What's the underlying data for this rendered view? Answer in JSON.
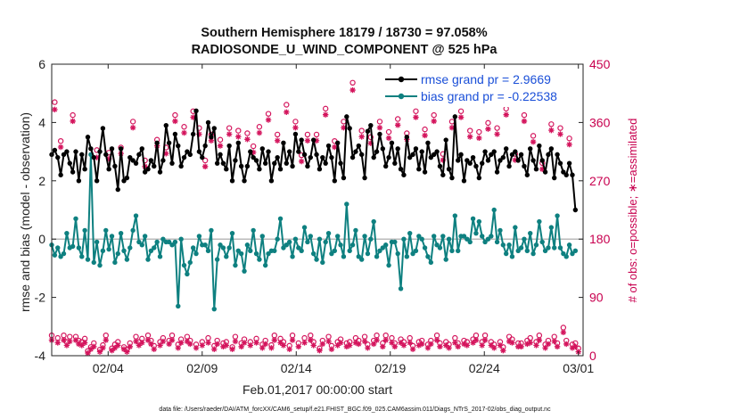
{
  "chart_data": {
    "type": "line",
    "title_line1": "Southern Hemisphere 18179 / 18730 = 97.058%",
    "title_line2": "RADIOSONDE_U_WIND_COMPONENT @ 525 hPa",
    "xlabel": "Feb.01,2017 00:00:00 start",
    "ylabel": "rmse and bias (model - observation)",
    "y2label": "# of obs: o=possible; ∗=assimilated",
    "footnote": "data file: /Users/raeder/DAI/ATM_forcXX/CAM6_setup/f.e21.FHIST_BGC.f09_025.CAM6assim.011/Diags_NTrS_2017-02/obs_diag_output.nc",
    "xlim": [
      1.0,
      29.25
    ],
    "ylim": [
      -4,
      6
    ],
    "y2lim": [
      0,
      450
    ],
    "x_ticks": [
      4,
      9,
      14,
      19,
      24,
      29
    ],
    "x_tick_labels": [
      "02/04",
      "02/09",
      "02/14",
      "02/19",
      "02/24",
      "03/01"
    ],
    "y_ticks": [
      -4,
      -2,
      0,
      2,
      4,
      6
    ],
    "y_tick_labels": [
      "-4",
      "-2",
      "0",
      "2",
      "4",
      "6"
    ],
    "y2_ticks": [
      0,
      90,
      180,
      270,
      360,
      450
    ],
    "y2_tick_labels": [
      "0",
      "90",
      "180",
      "270",
      "360",
      "450"
    ],
    "colors": {
      "rmse": "#000000",
      "bias": "#0e8080",
      "obs": "#d4155d",
      "zero_line": "#bbbbbb",
      "legend_text": "#1a4fd8"
    },
    "legend": [
      {
        "name": "rmse",
        "label": "rmse grand pr = 2.9669"
      },
      {
        "name": "bias",
        "label": "bias grand pr = -0.22538"
      }
    ],
    "series": [
      {
        "name": "rmse",
        "y_axis": "left",
        "values": [
          2.9,
          3.05,
          2.8,
          2.2,
          2.9,
          3.0,
          2.6,
          2.3,
          3.0,
          2.0,
          2.9,
          2.4,
          3.5,
          3.1,
          2.8,
          2.0,
          3.0,
          3.8,
          2.9,
          2.4,
          3.1,
          2.5,
          1.7,
          3.1,
          2.0,
          2.1,
          2.8,
          2.7,
          2.6,
          2.9,
          3.1,
          2.3,
          2.4,
          2.7,
          2.5,
          3.3,
          2.3,
          2.7,
          3.9,
          3.3,
          2.6,
          3.6,
          3.2,
          2.5,
          2.8,
          3.0,
          2.9,
          3.6,
          4.4,
          3.0,
          2.8,
          3.2,
          4.0,
          3.5,
          3.8,
          2.6,
          2.9,
          2.6,
          2.4,
          3.2,
          2.0,
          2.7,
          3.3,
          2.5,
          2.0,
          2.5,
          3.0,
          2.8,
          2.7,
          2.4,
          3.1,
          2.6,
          3.0,
          2.0,
          2.6,
          2.8,
          2.4,
          3.3,
          2.6,
          3.0,
          2.5,
          3.6,
          3.0,
          3.4,
          2.9,
          2.5,
          2.8,
          3.4,
          2.9,
          2.4,
          2.8,
          2.6,
          3.2,
          2.8,
          2.0,
          3.3,
          2.6,
          2.1,
          4.2,
          3.8,
          2.8,
          3.0,
          3.2,
          2.9,
          2.1,
          3.7,
          3.9,
          2.8,
          3.0,
          3.6,
          3.1,
          2.5,
          2.8,
          3.3,
          2.6,
          3.1,
          2.4,
          2.2,
          3.5,
          2.8,
          2.9,
          3.1,
          2.4,
          3.0,
          2.3,
          3.3,
          2.8,
          2.9,
          3.0,
          2.5,
          2.2,
          3.4,
          2.4,
          2.1,
          4.2,
          2.7,
          2.9,
          2.0,
          2.7,
          2.6,
          2.8,
          2.5,
          2.1,
          2.6,
          3.0,
          2.7,
          2.9,
          3.0,
          2.3,
          2.7,
          2.8,
          3.1,
          2.5,
          2.9,
          3.0,
          2.7,
          2.9,
          2.5,
          2.2,
          3.1,
          2.7,
          2.4,
          3.2,
          2.7,
          2.3,
          2.9,
          3.1,
          2.1,
          2.9,
          2.6,
          2.3,
          2.2,
          2.6,
          2.2,
          1.0
        ]
      },
      {
        "name": "bias",
        "y_axis": "left",
        "values": [
          -0.2,
          -0.55,
          -0.3,
          -0.6,
          -0.5,
          0.2,
          -0.3,
          -0.25,
          0.7,
          -0.3,
          -0.6,
          0.3,
          -0.7,
          2.9,
          -0.8,
          -0.1,
          -0.9,
          -0.4,
          0.3,
          -0.35,
          0.1,
          -0.8,
          -0.5,
          0.2,
          -0.4,
          -0.7,
          -0.3,
          0.3,
          0.8,
          -0.1,
          -0.2,
          0.1,
          -0.7,
          -0.4,
          -0.3,
          -0.1,
          -0.6,
          0.0,
          -0.1,
          -0.1,
          -0.2,
          -0.1,
          -2.3,
          0.0,
          -0.9,
          -1.2,
          -0.8,
          -0.3,
          -0.5,
          0.1,
          -0.2,
          -0.2,
          -0.4,
          0.3,
          -2.4,
          -0.7,
          -0.2,
          -0.3,
          -0.6,
          -0.3,
          0.2,
          -0.9,
          -0.4,
          -0.5,
          -1.1,
          -0.2,
          -0.4,
          0.3,
          -0.5,
          -0.7,
          0.1,
          -0.9,
          -0.5,
          -0.4,
          -0.4,
          0.0,
          0.7,
          -0.3,
          -0.2,
          -0.1,
          -0.6,
          0.0,
          -0.3,
          -0.4,
          0.4,
          -0.1,
          0.1,
          -0.5,
          -0.7,
          0.0,
          -0.8,
          -0.1,
          0.2,
          -0.5,
          -0.4,
          0.1,
          -0.2,
          -0.6,
          1.2,
          -0.4,
          -0.2,
          0.3,
          -0.6,
          -0.7,
          0.1,
          -0.5,
          0.0,
          0.6,
          -0.6,
          -0.4,
          -0.3,
          -0.2,
          -0.9,
          -0.1,
          -0.1,
          -0.5,
          -1.7,
          0.0,
          -0.6,
          0.2,
          -0.5,
          -0.4,
          0.1,
          0.0,
          -0.3,
          -0.6,
          -0.8,
          0.1,
          -0.2,
          -0.3,
          0.1,
          -0.7,
          0.0,
          -0.4,
          0.8,
          -0.4,
          0.1,
          0.1,
          0.0,
          -0.1,
          0.7,
          0.2,
          0.6,
          0.1,
          -0.1,
          0.0,
          0.1,
          1.0,
          -0.1,
          0.3,
          -0.2,
          -0.5,
          -0.2,
          -0.6,
          0.4,
          -0.4,
          -0.3,
          0.0,
          -0.4,
          0.2,
          -0.5,
          -0.2,
          0.6,
          -0.1,
          -0.4,
          -0.3,
          0.4,
          -0.3,
          0.8,
          -0.3,
          -0.5,
          -0.6,
          -0.2,
          -0.5,
          -0.4
        ]
      },
      {
        "name": "obs_possible",
        "y_axis": "right",
        "values": [
          30,
          390,
          26,
          330,
          30,
          20,
          28,
          370,
          28,
          22,
          20,
          25,
          6,
          12,
          18,
          316,
          8,
          15,
          30,
          312,
          10,
          16,
          20,
          320,
          12,
          8,
          18,
          360,
          28,
          20,
          25,
          300,
          30,
          22,
          14,
          332,
          20,
          26,
          320,
          22,
          30,
          370,
          16,
          24,
          352,
          28,
          22,
          376,
          16,
          350,
          20,
          300,
          26,
          340,
          14,
          22,
          332,
          18,
          20,
          350,
          12,
          28,
          346,
          18,
          24,
          342,
          20,
          322,
          25,
          352,
          16,
          22,
          372,
          15,
          30,
          340,
          25,
          20,
          386,
          14,
          30,
          360,
          18,
          308,
          26,
          340,
          30,
          20,
          340,
          10,
          22,
          380,
          28,
          14,
          330,
          20,
          24,
          360,
          18,
          20,
          420,
          26,
          22,
          346,
          28,
          16,
          336,
          22,
          30,
          360,
          18,
          30,
          344,
          26,
          18,
          364,
          24,
          20,
          342,
          26,
          14,
          376,
          20,
          22,
          348,
          16,
          22,
          370,
          30,
          18,
          310,
          20,
          16,
          360,
          26,
          18,
          376,
          22,
          20,
          346,
          24,
          30,
          344,
          20,
          30,
          358,
          20,
          16,
          350,
          20,
          12,
          380,
          28,
          24,
          310,
          18,
          18,
          370,
          22,
          26,
          338,
          20,
          30,
          296,
          16,
          22,
          356,
          28,
          18,
          350,
          42,
          22,
          334,
          16,
          18,
          10
        ]
      },
      {
        "name": "obs_assimilated",
        "y_axis": "right",
        "values": [
          24,
          380,
          20,
          322,
          24,
          16,
          22,
          362,
          24,
          18,
          16,
          20,
          4,
          10,
          14,
          306,
          6,
          12,
          24,
          304,
          8,
          12,
          16,
          312,
          10,
          6,
          14,
          352,
          22,
          16,
          20,
          292,
          24,
          18,
          10,
          324,
          16,
          22,
          312,
          18,
          24,
          362,
          12,
          20,
          344,
          22,
          18,
          368,
          12,
          342,
          16,
          292,
          20,
          332,
          10,
          18,
          324,
          14,
          16,
          342,
          10,
          22,
          338,
          14,
          20,
          334,
          16,
          314,
          20,
          344,
          12,
          18,
          364,
          12,
          24,
          332,
          20,
          16,
          376,
          10,
          24,
          352,
          14,
          300,
          20,
          332,
          24,
          16,
          332,
          8,
          18,
          372,
          22,
          10,
          322,
          16,
          20,
          352,
          14,
          16,
          410,
          20,
          18,
          338,
          22,
          12,
          328,
          18,
          24,
          352,
          14,
          24,
          336,
          20,
          14,
          356,
          20,
          16,
          334,
          20,
          10,
          368,
          16,
          18,
          340,
          12,
          18,
          362,
          24,
          14,
          302,
          16,
          12,
          352,
          20,
          14,
          368,
          18,
          16,
          338,
          20,
          24,
          336,
          16,
          24,
          350,
          16,
          12,
          342,
          16,
          8,
          372,
          22,
          20,
          302,
          14,
          14,
          362,
          18,
          20,
          330,
          16,
          24,
          288,
          12,
          18,
          348,
          22,
          14,
          342,
          36,
          18,
          326,
          12,
          14,
          6
        ]
      }
    ]
  }
}
